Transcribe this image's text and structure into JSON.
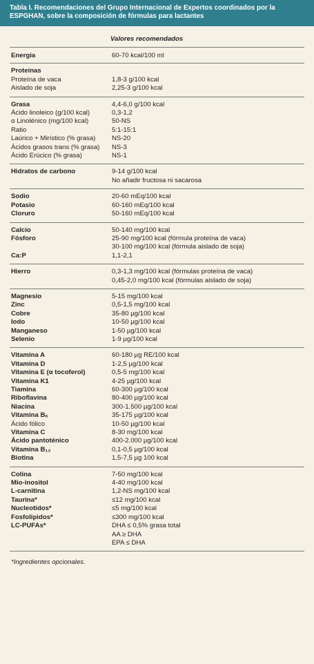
{
  "header": {
    "title": "Tabla I. Recomendaciones del Grupo Internacional de Expertos coordinados por la ESPGHAN, sobre la composición de fórmulas para lactantes"
  },
  "table": {
    "column_header": "Valores recomendados",
    "groups": [
      {
        "rows": [
          {
            "label": "Energía",
            "bold": true,
            "value": [
              "60-70 kcal/100 ml"
            ]
          }
        ]
      },
      {
        "rows": [
          {
            "label": "Proteínas",
            "bold": true
          },
          {
            "label": "Proteína de vaca",
            "bold": false,
            "value": [
              "1,8-3 g/100 kcal"
            ]
          },
          {
            "label": "Aislado de soja",
            "bold": false,
            "value": [
              "2,25-3 g/100 kcal"
            ]
          }
        ]
      },
      {
        "rows": [
          {
            "label": "Grasa",
            "bold": true,
            "value": [
              "4,4-6,0 g/100 kcal"
            ]
          },
          {
            "label": "Ácido linoleico (g/100 kcal)",
            "bold": false,
            "value": [
              "0,3-1,2"
            ]
          },
          {
            "label": "α Linolénico (mg/100 kcal)",
            "bold": false,
            "value": [
              "50-NS"
            ]
          },
          {
            "label": "Ratio",
            "bold": false,
            "value": [
              "5:1-15:1"
            ]
          },
          {
            "label": "Laúrico + Mirístico (% grasa)",
            "bold": false,
            "value": [
              "NS-20"
            ]
          },
          {
            "label": "Ácidos grasos trans (% grasa)",
            "bold": false,
            "value": [
              "NS-3"
            ]
          },
          {
            "label": "Ácido Erúcico (% grasa)",
            "bold": false,
            "value": [
              "NS-1"
            ]
          }
        ]
      },
      {
        "rows": [
          {
            "label": "Hidratos de carbono",
            "bold": true,
            "value": [
              "9-14 g/100 kcal",
              "No añadir fructosa ni sacarosa"
            ]
          }
        ]
      },
      {
        "rows": [
          {
            "label": "Sodio",
            "bold": true,
            "value": [
              "20-60 mEq/100 kcal"
            ]
          },
          {
            "label": "Potasio",
            "bold": true,
            "value": [
              "60-160 mEq/100 kcal"
            ]
          },
          {
            "label": "Cloruro",
            "bold": true,
            "value": [
              "50-160 mEq/100 kcal"
            ]
          }
        ]
      },
      {
        "rows": [
          {
            "label": "Calcio",
            "bold": true,
            "value": [
              "50-140 mg/100 kcal"
            ]
          },
          {
            "label": "Fósforo",
            "bold": true,
            "value": [
              "25-90 mg/100 kcal (fórmula proteína de vaca)",
              "30-100 mg/100 kcal (fórmula aislado de soja)"
            ]
          },
          {
            "label": "Ca:P",
            "bold": true,
            "value": [
              "1,1-2,1"
            ]
          }
        ]
      },
      {
        "rows": [
          {
            "label": "Hierro",
            "bold": true,
            "value": [
              "0,3-1,3 mg/100 kcal (fórmulas proteína de vaca)",
              "0,45-2,0 mg/100 kcal (fórmulas aislado de soja)"
            ]
          }
        ]
      },
      {
        "rows": [
          {
            "label": "Magnesio",
            "bold": true,
            "value": [
              "5-15 mg/100 kcal"
            ]
          },
          {
            "label": "Zinc",
            "bold": true,
            "value": [
              "0,5-1,5 mg/100 kcal"
            ]
          },
          {
            "label": "Cobre",
            "bold": true,
            "value": [
              "35-80 µg/100 kcal"
            ]
          },
          {
            "label": "Iodo",
            "bold": true,
            "value": [
              "10-50 µg/100 kcal"
            ]
          },
          {
            "label": "Manganeso",
            "bold": true,
            "value": [
              "1-50 µg/100 kcal"
            ]
          },
          {
            "label": "Selenio",
            "bold": true,
            "value": [
              "1-9 µg/100 kcal"
            ]
          }
        ]
      },
      {
        "rows": [
          {
            "label": "Vitamina A",
            "bold": true,
            "value": [
              "60-180 µg RE/100 kcal"
            ]
          },
          {
            "label": "Vitamina D",
            "bold": true,
            "value": [
              "1-2,5 µg/100 kcal"
            ]
          },
          {
            "label": "Vitamina E (α tocoferol)",
            "bold": true,
            "value": [
              "0,5-5 mg/100 kcal"
            ]
          },
          {
            "label": "Vitamina K1",
            "bold": true,
            "value": [
              "4-25 µg/100 kcal"
            ]
          },
          {
            "label": "Tiamina",
            "bold": true,
            "value": [
              "60-300 µg/100 kcal"
            ]
          },
          {
            "label": "Riboflavina",
            "bold": true,
            "value": [
              "80-400 µg/100 kcal"
            ]
          },
          {
            "label": "Niacina",
            "bold": true,
            "value": [
              "300-1.500 µg/100 kcal"
            ]
          },
          {
            "label": "Vitamina B₆",
            "bold": true,
            "value": [
              "35-175 µg/100 kcal"
            ]
          },
          {
            "label": "Ácido fólico",
            "bold": false,
            "value": [
              "10-50 µg/100 kcal"
            ]
          },
          {
            "label": "Vitamina C",
            "bold": true,
            "value": [
              "8-30 mg/100 kcal"
            ]
          },
          {
            "label": "Ácido pantoténico",
            "bold": true,
            "value": [
              "400-2.000 µg/100 kcal"
            ]
          },
          {
            "label": "Vitamina B₁₂",
            "bold": true,
            "value": [
              "0,1-0,5 µg/100 kcal"
            ]
          },
          {
            "label": "Biotina",
            "bold": true,
            "value": [
              "1,5-7,5 µg 100 kcal"
            ]
          }
        ]
      },
      {
        "rows": [
          {
            "label": "Colina",
            "bold": true,
            "value": [
              "7-50 mg/100 kcal"
            ]
          },
          {
            "label": "Mio-inositol",
            "bold": true,
            "value": [
              "4-40 mg/100 kcal"
            ]
          },
          {
            "label": "L-carnitina",
            "bold": true,
            "value": [
              "1,2-NS mg/100 kcal"
            ]
          },
          {
            "label": "Taurina*",
            "bold": true,
            "value": [
              "≤12 mg/100 kcal"
            ]
          },
          {
            "label": "Nucleotidos*",
            "bold": true,
            "value": [
              "≤5 mg/100 kcal"
            ]
          },
          {
            "label": "Fosfolipidos*",
            "bold": true,
            "value": [
              "≤300 mg/100 kcal"
            ]
          },
          {
            "label": "LC-PUFAs*",
            "bold": true,
            "value": [
              "DHA ≤ 0,5% grasa total",
              "AA ≥ DHA",
              "EPA ≤ DHA"
            ]
          }
        ]
      }
    ]
  },
  "footnote": "*Ingredientes opcionales."
}
